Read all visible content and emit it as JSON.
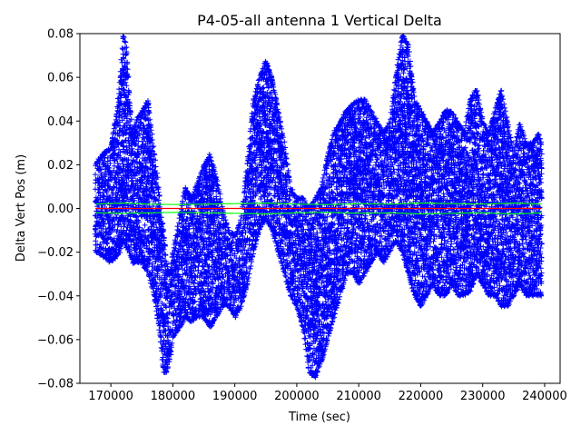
{
  "chart_data": {
    "type": "scatter",
    "title": "P4-05-all antenna 1 Vertical Delta",
    "xlabel": "Time (sec)",
    "ylabel": "Delta Vert Pos (m)",
    "xlim": [
      165000,
      242500
    ],
    "ylim": [
      -0.08,
      0.08
    ],
    "x_ticks": [
      170000,
      180000,
      190000,
      200000,
      210000,
      220000,
      230000,
      240000
    ],
    "x_tick_labels": [
      "170000",
      "180000",
      "190000",
      "200000",
      "210000",
      "220000",
      "230000",
      "240000"
    ],
    "y_ticks": [
      -0.08,
      -0.06,
      -0.04,
      -0.02,
      0.0,
      0.02,
      0.04,
      0.06,
      0.08
    ],
    "y_tick_labels": [
      "−0.08",
      "−0.06",
      "−0.04",
      "−0.02",
      "0.00",
      "0.02",
      "0.04",
      "0.06",
      "0.08"
    ],
    "grid": false,
    "series": [
      {
        "marker": "+",
        "color": "#0000ff",
        "x_start": 167500,
        "x_end": 239500,
        "envelope": {
          "x": [
            167500,
            168500,
            170000,
            171000,
            171500,
            172000,
            172500,
            173000,
            173500,
            174000,
            175000,
            176000,
            177000,
            177500,
            178000,
            178500,
            179000,
            179500,
            180000,
            181000,
            182000,
            183000,
            184000,
            185000,
            186000,
            187000,
            188000,
            189000,
            190000,
            191000,
            192000,
            193000,
            194000,
            195000,
            196000,
            197000,
            198000,
            199000,
            200000,
            201000,
            202000,
            203000,
            204000,
            205000,
            206000,
            207000,
            208000,
            209000,
            210000,
            211000,
            212000,
            213000,
            214000,
            215000,
            216000,
            217000,
            218000,
            219000,
            220000,
            221000,
            222000,
            223000,
            224000,
            225000,
            226000,
            227000,
            228000,
            229000,
            230000,
            231000,
            232000,
            233000,
            234000,
            235000,
            236000,
            237000,
            238000,
            239000,
            239500
          ],
          "upper": [
            0.02,
            0.025,
            0.028,
            0.045,
            0.06,
            0.08,
            0.075,
            0.05,
            0.035,
            0.04,
            0.045,
            0.05,
            0.025,
            0.015,
            0.0,
            -0.01,
            -0.025,
            -0.03,
            -0.02,
            -0.005,
            0.01,
            0.005,
            0.012,
            0.02,
            0.025,
            0.015,
            0.0,
            -0.01,
            -0.012,
            -0.005,
            0.02,
            0.05,
            0.06,
            0.068,
            0.06,
            0.045,
            0.03,
            0.01,
            0.005,
            0.005,
            0.0,
            0.005,
            0.01,
            0.025,
            0.035,
            0.04,
            0.045,
            0.048,
            0.05,
            0.05,
            0.045,
            0.04,
            0.035,
            0.04,
            0.06,
            0.08,
            0.075,
            0.05,
            0.045,
            0.04,
            0.035,
            0.04,
            0.045,
            0.045,
            0.04,
            0.035,
            0.05,
            0.055,
            0.04,
            0.035,
            0.045,
            0.055,
            0.04,
            0.025,
            0.04,
            0.03,
            0.03,
            0.035,
            0.03
          ],
          "lower": [
            -0.02,
            -0.022,
            -0.025,
            -0.022,
            -0.02,
            -0.015,
            -0.018,
            -0.02,
            -0.025,
            -0.025,
            -0.025,
            -0.03,
            -0.04,
            -0.05,
            -0.06,
            -0.075,
            -0.075,
            -0.07,
            -0.06,
            -0.055,
            -0.05,
            -0.052,
            -0.05,
            -0.05,
            -0.055,
            -0.05,
            -0.045,
            -0.045,
            -0.05,
            -0.045,
            -0.035,
            -0.02,
            -0.01,
            -0.005,
            -0.01,
            -0.02,
            -0.03,
            -0.04,
            -0.045,
            -0.055,
            -0.075,
            -0.078,
            -0.07,
            -0.06,
            -0.05,
            -0.04,
            -0.03,
            -0.03,
            -0.035,
            -0.03,
            -0.025,
            -0.02,
            -0.025,
            -0.02,
            -0.015,
            -0.02,
            -0.03,
            -0.04,
            -0.045,
            -0.04,
            -0.035,
            -0.04,
            -0.04,
            -0.035,
            -0.04,
            -0.04,
            -0.038,
            -0.03,
            -0.035,
            -0.04,
            -0.04,
            -0.045,
            -0.045,
            -0.04,
            -0.035,
            -0.04,
            -0.04,
            -0.04,
            -0.04
          ]
        }
      },
      {
        "marker": "line",
        "color": "#00ff00",
        "x": [
          167500,
          172000,
          176000,
          180000,
          185000,
          190000,
          195000,
          200000,
          205000,
          210000,
          215000,
          220000,
          225000,
          230000,
          235000,
          239500
        ],
        "values": [
          0.002,
          0.0025,
          0.002,
          0.0018,
          0.002,
          0.0022,
          0.0025,
          0.002,
          0.0018,
          0.0022,
          0.002,
          0.0025,
          0.0022,
          0.002,
          0.0025,
          0.002
        ]
      },
      {
        "marker": "line",
        "color": "#00ff00",
        "x": [
          167500,
          172000,
          176000,
          180000,
          185000,
          190000,
          195000,
          200000,
          205000,
          210000,
          215000,
          220000,
          225000,
          230000,
          235000,
          239500
        ],
        "values": [
          -0.002,
          -0.0022,
          -0.002,
          -0.0018,
          -0.002,
          -0.0022,
          -0.0025,
          -0.002,
          -0.0018,
          -0.0022,
          -0.002,
          -0.0025,
          -0.0022,
          -0.002,
          -0.0025,
          -0.002
        ]
      },
      {
        "marker": "line",
        "color": "#ff0000",
        "x": [
          167500,
          239500
        ],
        "values": [
          0.0,
          0.0
        ]
      }
    ]
  }
}
